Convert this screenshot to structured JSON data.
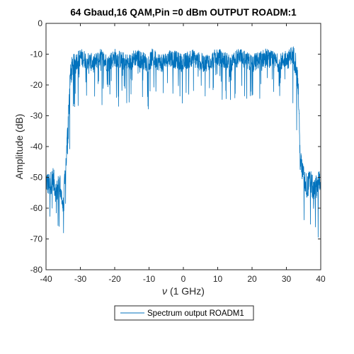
{
  "chart_data": {
    "type": "line",
    "title": "64 Gbaud,16 QAM,Pin =0 dBm OUTPUT ROADM:1",
    "xlabel_symbol": "ν",
    "xlabel_unit": "(1 GHz)",
    "ylabel": "Amplitude (dB)",
    "xlim": [
      -40,
      40
    ],
    "ylim": [
      -80,
      0
    ],
    "xticks": [
      -40,
      -30,
      -20,
      -10,
      0,
      10,
      20,
      30,
      40
    ],
    "yticks": [
      0,
      -10,
      -20,
      -30,
      -40,
      -50,
      -60,
      -70,
      -80
    ],
    "grid": false,
    "legend_placement": "bottom-center-outside",
    "series": [
      {
        "name": "Spectrum output ROADM1",
        "color": "#0072BD",
        "x": [
          -40,
          -39,
          -38,
          -37,
          -36,
          -35,
          -34,
          -33.5,
          -33,
          -32.5,
          -32,
          -31,
          -30,
          -28,
          -26,
          -24,
          -23,
          -22,
          -20,
          -18,
          -16,
          -15,
          -14,
          -12,
          -10,
          -9,
          -8,
          -6,
          -5,
          -4,
          -2,
          0,
          2,
          4,
          6,
          8,
          10,
          12,
          14,
          16,
          18,
          20,
          22,
          24,
          26,
          28,
          29,
          30,
          30.5,
          31,
          31.5,
          32,
          32.5,
          33,
          33.5,
          34,
          35,
          36,
          37,
          38,
          39,
          40
        ],
        "values": [
          -51,
          -53,
          -50,
          -55,
          -52,
          -60,
          -42,
          -30,
          -18,
          -15,
          -13,
          -12,
          -11,
          -12,
          -13,
          -11,
          -12,
          -13,
          -11,
          -12,
          -13,
          -12,
          -11,
          -12,
          -13,
          -11,
          -12,
          -13,
          -12,
          -11,
          -12,
          -13,
          -11,
          -12,
          -13,
          -12,
          -11,
          -12,
          -13,
          -11,
          -12,
          -13,
          -12,
          -11,
          -12,
          -13,
          -12,
          -11,
          -12,
          -11,
          -10,
          -11,
          -12,
          -14,
          -22,
          -44,
          -50,
          -53,
          -51,
          -55,
          -52,
          -50
        ]
      }
    ]
  }
}
